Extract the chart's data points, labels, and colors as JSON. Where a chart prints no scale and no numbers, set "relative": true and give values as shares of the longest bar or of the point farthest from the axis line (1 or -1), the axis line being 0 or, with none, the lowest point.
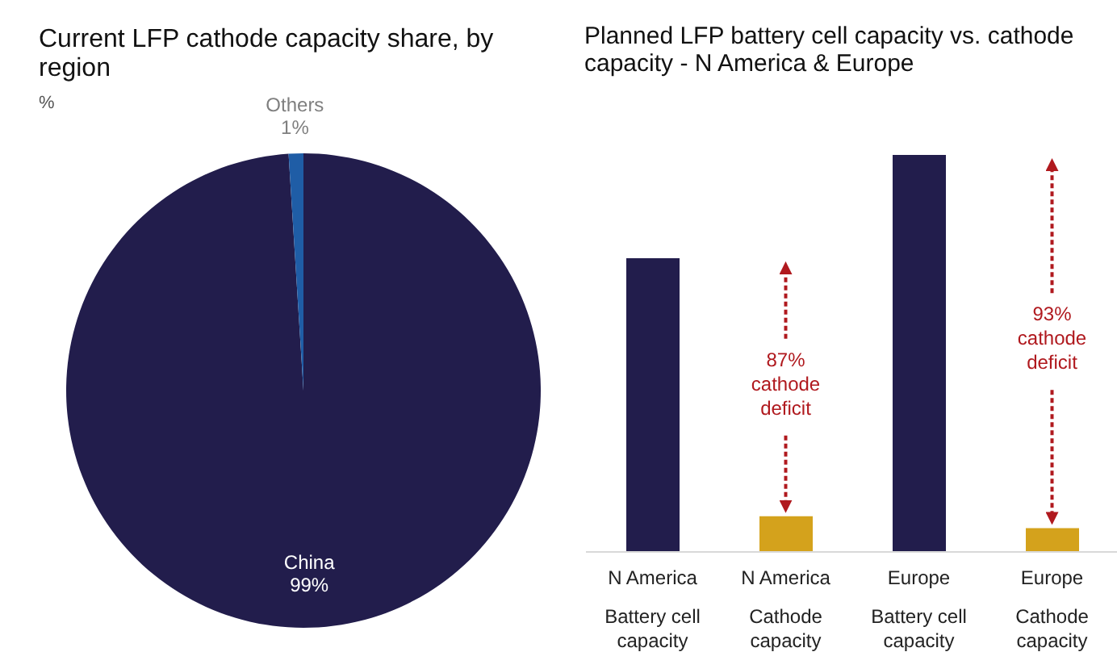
{
  "chart_data": [
    {
      "type": "pie",
      "title": "Current LFP cathode capacity share, by region",
      "subtitle": "%",
      "categories": [
        "China",
        "Others"
      ],
      "values": [
        99,
        1
      ],
      "colors": [
        "#221d4c",
        "#1f5da6"
      ],
      "value_labels": [
        "99%",
        "1%"
      ]
    },
    {
      "type": "bar",
      "title": "Planned LFP battery cell capacity vs. cathode capacity - N America & Europe",
      "relative": true,
      "categories": [
        "N America\nBattery cell\ncapacity",
        "N America\nCathode\ncapacity",
        "Europe\nBattery cell\ncapacity",
        "Europe\nCathode\ncapacity"
      ],
      "values": [
        0.74,
        0.09,
        1,
        0.06
      ],
      "colors": [
        "#221d4c",
        "#d4a21c",
        "#221d4c",
        "#d4a21c"
      ],
      "annotations": [
        {
          "text": "87% cathode deficit",
          "x": "N America\nCathode\ncapacity"
        },
        {
          "text": "93% cathode deficit",
          "x": "Europe\nCathode\ncapacity"
        }
      ]
    }
  ]
}
